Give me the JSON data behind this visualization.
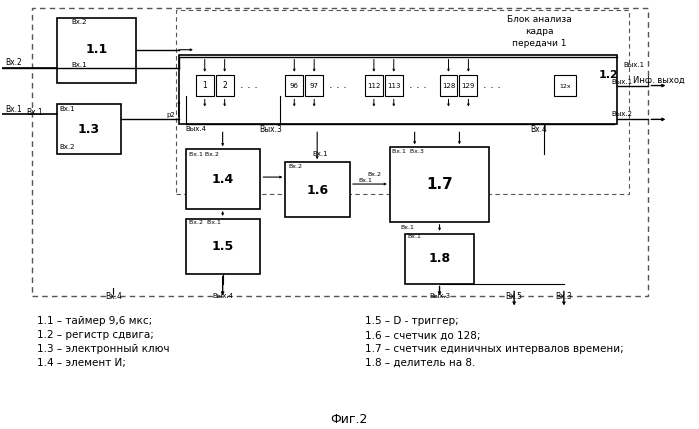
{
  "title": "Блок анализа\nкадра\nпередачи 1",
  "fig_caption": "Фиг.2",
  "legend_left": [
    "1.1 – таймер 9,6 мкс;",
    "1.2 – регистр сдвига;",
    "1.3 – электронный ключ",
    "1.4 – элемент И;"
  ],
  "legend_right": [
    "1.5 – D - триггер;",
    "1.6 – счетчик до 128;",
    "1.7 – счетчик единичных интервалов времени;",
    "1.8 – делитель на 8."
  ],
  "bg_color": "#ffffff",
  "box_color": "#000000",
  "dashed_box_color": "#888888"
}
